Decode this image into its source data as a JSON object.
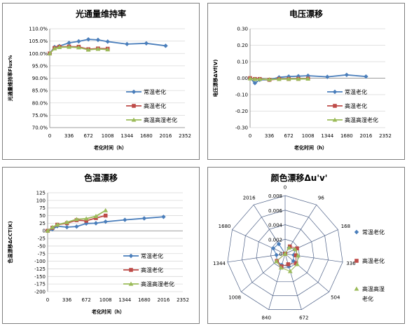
{
  "charts": [
    {
      "type": "line",
      "title": "光通量维持率",
      "xlabel": "老化时间（h）",
      "ylabel": "光通量维持率Flux%",
      "xticks": [
        "0",
        "336",
        "672",
        "1008",
        "1344",
        "1680",
        "2016",
        "2352"
      ],
      "xlim": [
        0,
        2352
      ],
      "yticks": [
        "70.0%",
        "75.0%",
        "80.0%",
        "85.0%",
        "90.0%",
        "95.0%",
        "100.0%",
        "105.0%",
        "110.0%"
      ],
      "ylim": [
        70,
        110
      ],
      "series": [
        {
          "name": "常温老化",
          "color": "#4a7ebb",
          "marker": "diamond",
          "x": [
            0,
            84,
            168,
            336,
            504,
            672,
            840,
            1008,
            1344,
            1680,
            2016
          ],
          "y": [
            100.0,
            102.6,
            103.0,
            104.3,
            104.9,
            105.7,
            105.5,
            104.8,
            103.8,
            104.1,
            103.1
          ]
        },
        {
          "name": "高温老化",
          "color": "#be4b48",
          "marker": "square",
          "x": [
            0,
            84,
            168,
            336,
            504,
            672,
            840,
            1008
          ],
          "y": [
            100.0,
            102.2,
            102.7,
            102.8,
            102.7,
            101.7,
            102.0,
            101.9
          ]
        },
        {
          "name": "高温高湿老化",
          "color": "#9bbb59",
          "marker": "triangle",
          "x": [
            0,
            84,
            168,
            336,
            504,
            672,
            840,
            1008
          ],
          "y": [
            100.0,
            102.0,
            102.5,
            102.6,
            102.4,
            101.5,
            101.8,
            101.6
          ]
        }
      ]
    },
    {
      "type": "line",
      "title": "电压漂移",
      "xlabel": "老化时间（h）",
      "ylabel": "电压漂移ΔVf(V)",
      "xticks": [
        "0",
        "336",
        "672",
        "1008",
        "1344",
        "1680",
        "2016",
        "2352"
      ],
      "xlim": [
        0,
        2352
      ],
      "yticks": [
        "-0.30",
        "-0.20",
        "-0.10",
        "0.00",
        "0.10",
        "0.20",
        "0.30"
      ],
      "ylim": [
        -0.3,
        0.3
      ],
      "series": [
        {
          "name": "常温老化",
          "color": "#4a7ebb",
          "marker": "diamond",
          "x": [
            0,
            84,
            168,
            336,
            504,
            672,
            840,
            1008,
            1344,
            1680,
            2016
          ],
          "y": [
            0.0,
            -0.03,
            -0.01,
            -0.01,
            0.005,
            0.01,
            0.012,
            0.015,
            0.008,
            0.02,
            0.01
          ]
        },
        {
          "name": "高温老化",
          "color": "#be4b48",
          "marker": "square",
          "x": [
            0,
            84,
            168,
            336,
            504,
            672,
            840,
            1008
          ],
          "y": [
            0.0,
            -0.005,
            -0.005,
            -0.01,
            -0.005,
            -0.005,
            -0.004,
            -0.003
          ]
        },
        {
          "name": "高温高湿老化",
          "color": "#9bbb59",
          "marker": "triangle",
          "x": [
            0,
            84,
            168,
            336,
            504,
            672,
            840,
            1008
          ],
          "y": [
            -0.002,
            -0.006,
            -0.006,
            -0.008,
            -0.006,
            -0.005,
            -0.005,
            -0.004
          ]
        }
      ]
    },
    {
      "type": "line",
      "title": "色温漂移",
      "xlabel": "老化时间（h）",
      "ylabel": "色温漂移ΔCCT(K)",
      "xticks": [
        "0",
        "336",
        "672",
        "1008",
        "1344",
        "1680",
        "2016",
        "2352"
      ],
      "xlim": [
        0,
        2352
      ],
      "yticks": [
        "-200",
        "-175",
        "-150",
        "-125",
        "-100",
        "-75",
        "-50",
        "-25",
        "0",
        "25",
        "50",
        "75",
        "100",
        "125"
      ],
      "ylim": [
        -200,
        125
      ],
      "series": [
        {
          "name": "常温老化",
          "color": "#4a7ebb",
          "marker": "diamond",
          "x": [
            0,
            84,
            168,
            336,
            504,
            672,
            840,
            1008,
            1344,
            1680,
            2016
          ],
          "y": [
            0,
            5,
            15,
            12,
            14,
            24,
            25,
            30,
            36,
            41,
            46
          ]
        },
        {
          "name": "高温老化",
          "color": "#be4b48",
          "marker": "square",
          "x": [
            0,
            84,
            168,
            336,
            504,
            672,
            840,
            1008
          ],
          "y": [
            0,
            10,
            20,
            25,
            35,
            33,
            42,
            50
          ]
        },
        {
          "name": "高温高湿老化",
          "color": "#9bbb59",
          "marker": "triangle",
          "x": [
            0,
            84,
            168,
            336,
            504,
            672,
            840,
            1008
          ],
          "y": [
            0,
            12,
            20,
            28,
            38,
            40,
            48,
            67
          ]
        }
      ]
    },
    {
      "type": "radar",
      "title": "颜色漂移Δu'v'",
      "categories": [
        "0",
        "96",
        "168",
        "336",
        "504",
        "672",
        "840",
        "1008",
        "1344",
        "1680",
        "2016"
      ],
      "rticks": [
        "0",
        "0.002",
        "0.004",
        "0.006",
        "0.008"
      ],
      "rlim": [
        0,
        0.008
      ],
      "series": [
        {
          "name": "常温老化",
          "color": "#4a7ebb",
          "marker": "diamond",
          "values": [
            0.0,
            0.001,
            0.0015,
            0.0012,
            0.0015,
            0.0018,
            0.0016,
            0.0015,
            0.0012,
            0.0018,
            0.0016
          ]
        },
        {
          "name": "高温老化",
          "color": "#be4b48",
          "marker": "square",
          "values": [
            0.0,
            0.0012,
            0.0018,
            0.0015,
            0.002,
            0.0015,
            0.0018,
            0.0015,
            0.0,
            0.0,
            0.0
          ]
        },
        {
          "name": "高温高湿老化",
          "color": "#9bbb59",
          "marker": "triangle",
          "values": [
            0.0,
            0.001,
            0.0015,
            0.0018,
            0.0022,
            0.0025,
            0.002,
            0.0016,
            0.0,
            0.0,
            0.0
          ]
        }
      ]
    }
  ],
  "chart_data": [
    {
      "type": "line",
      "title": "光通量维持率",
      "xlabel": "老化时间（h）",
      "ylabel": "光通量维持率Flux%",
      "ylim": [
        70,
        110
      ],
      "xlim": [
        0,
        2352
      ],
      "series": [
        {
          "name": "常温老化",
          "x": [
            0,
            84,
            168,
            336,
            504,
            672,
            840,
            1008,
            1344,
            1680,
            2016
          ],
          "y": [
            100.0,
            102.6,
            103.0,
            104.3,
            104.9,
            105.7,
            105.5,
            104.8,
            103.8,
            104.1,
            103.1
          ]
        },
        {
          "name": "高温老化",
          "x": [
            0,
            84,
            168,
            336,
            504,
            672,
            840,
            1008
          ],
          "y": [
            100.0,
            102.2,
            102.7,
            102.8,
            102.7,
            101.7,
            102.0,
            101.9
          ]
        },
        {
          "name": "高温高湿老化",
          "x": [
            0,
            84,
            168,
            336,
            504,
            672,
            840,
            1008
          ],
          "y": [
            100.0,
            102.0,
            102.5,
            102.6,
            102.4,
            101.5,
            101.8,
            101.6
          ]
        }
      ]
    },
    {
      "type": "line",
      "title": "电压漂移",
      "xlabel": "老化时间（h）",
      "ylabel": "电压漂移ΔVf(V)",
      "ylim": [
        -0.3,
        0.3
      ],
      "xlim": [
        0,
        2352
      ],
      "series": [
        {
          "name": "常温老化",
          "x": [
            0,
            84,
            168,
            336,
            504,
            672,
            840,
            1008,
            1344,
            1680,
            2016
          ],
          "y": [
            0.0,
            -0.03,
            -0.01,
            -0.01,
            0.005,
            0.01,
            0.012,
            0.015,
            0.008,
            0.02,
            0.01
          ]
        },
        {
          "name": "高温老化",
          "x": [
            0,
            84,
            168,
            336,
            504,
            672,
            840,
            1008
          ],
          "y": [
            0.0,
            -0.005,
            -0.005,
            -0.01,
            -0.005,
            -0.005,
            -0.004,
            -0.003
          ]
        },
        {
          "name": "高温高湿老化",
          "x": [
            0,
            84,
            168,
            336,
            504,
            672,
            840,
            1008
          ],
          "y": [
            -0.002,
            -0.006,
            -0.006,
            -0.008,
            -0.006,
            -0.005,
            -0.005,
            -0.004
          ]
        }
      ]
    },
    {
      "type": "line",
      "title": "色温漂移",
      "xlabel": "老化时间（h）",
      "ylabel": "色温漂移ΔCCT(K)",
      "ylim": [
        -200,
        125
      ],
      "xlim": [
        0,
        2352
      ],
      "series": [
        {
          "name": "常温老化",
          "x": [
            0,
            84,
            168,
            336,
            504,
            672,
            840,
            1008,
            1344,
            1680,
            2016
          ],
          "y": [
            0,
            5,
            15,
            12,
            14,
            24,
            25,
            30,
            36,
            41,
            46
          ]
        },
        {
          "name": "高温老化",
          "x": [
            0,
            84,
            168,
            336,
            504,
            672,
            840,
            1008
          ],
          "y": [
            0,
            10,
            20,
            25,
            35,
            33,
            42,
            50
          ]
        },
        {
          "name": "高温高湿老化",
          "x": [
            0,
            84,
            168,
            336,
            504,
            672,
            840,
            1008
          ],
          "y": [
            0,
            12,
            20,
            28,
            38,
            40,
            48,
            67
          ]
        }
      ]
    },
    {
      "type": "radar",
      "title": "颜色漂移Δu'v'",
      "categories": [
        "0",
        "96",
        "168",
        "336",
        "504",
        "672",
        "840",
        "1008",
        "1344",
        "1680",
        "2016"
      ],
      "rlim": [
        0,
        0.008
      ],
      "series": [
        {
          "name": "常温老化",
          "values": [
            0.0,
            0.001,
            0.0015,
            0.0012,
            0.0015,
            0.0018,
            0.0016,
            0.0015,
            0.0012,
            0.0018,
            0.0016
          ]
        },
        {
          "name": "高温老化",
          "values": [
            0.0,
            0.0012,
            0.0018,
            0.0015,
            0.002,
            0.0015,
            0.0018,
            0.0015,
            0.0,
            0.0,
            0.0
          ]
        },
        {
          "name": "高温高湿老化",
          "values": [
            0.0,
            0.001,
            0.0015,
            0.0018,
            0.0022,
            0.0025,
            0.002,
            0.0016,
            0.0,
            0.0,
            0.0
          ]
        }
      ]
    }
  ]
}
